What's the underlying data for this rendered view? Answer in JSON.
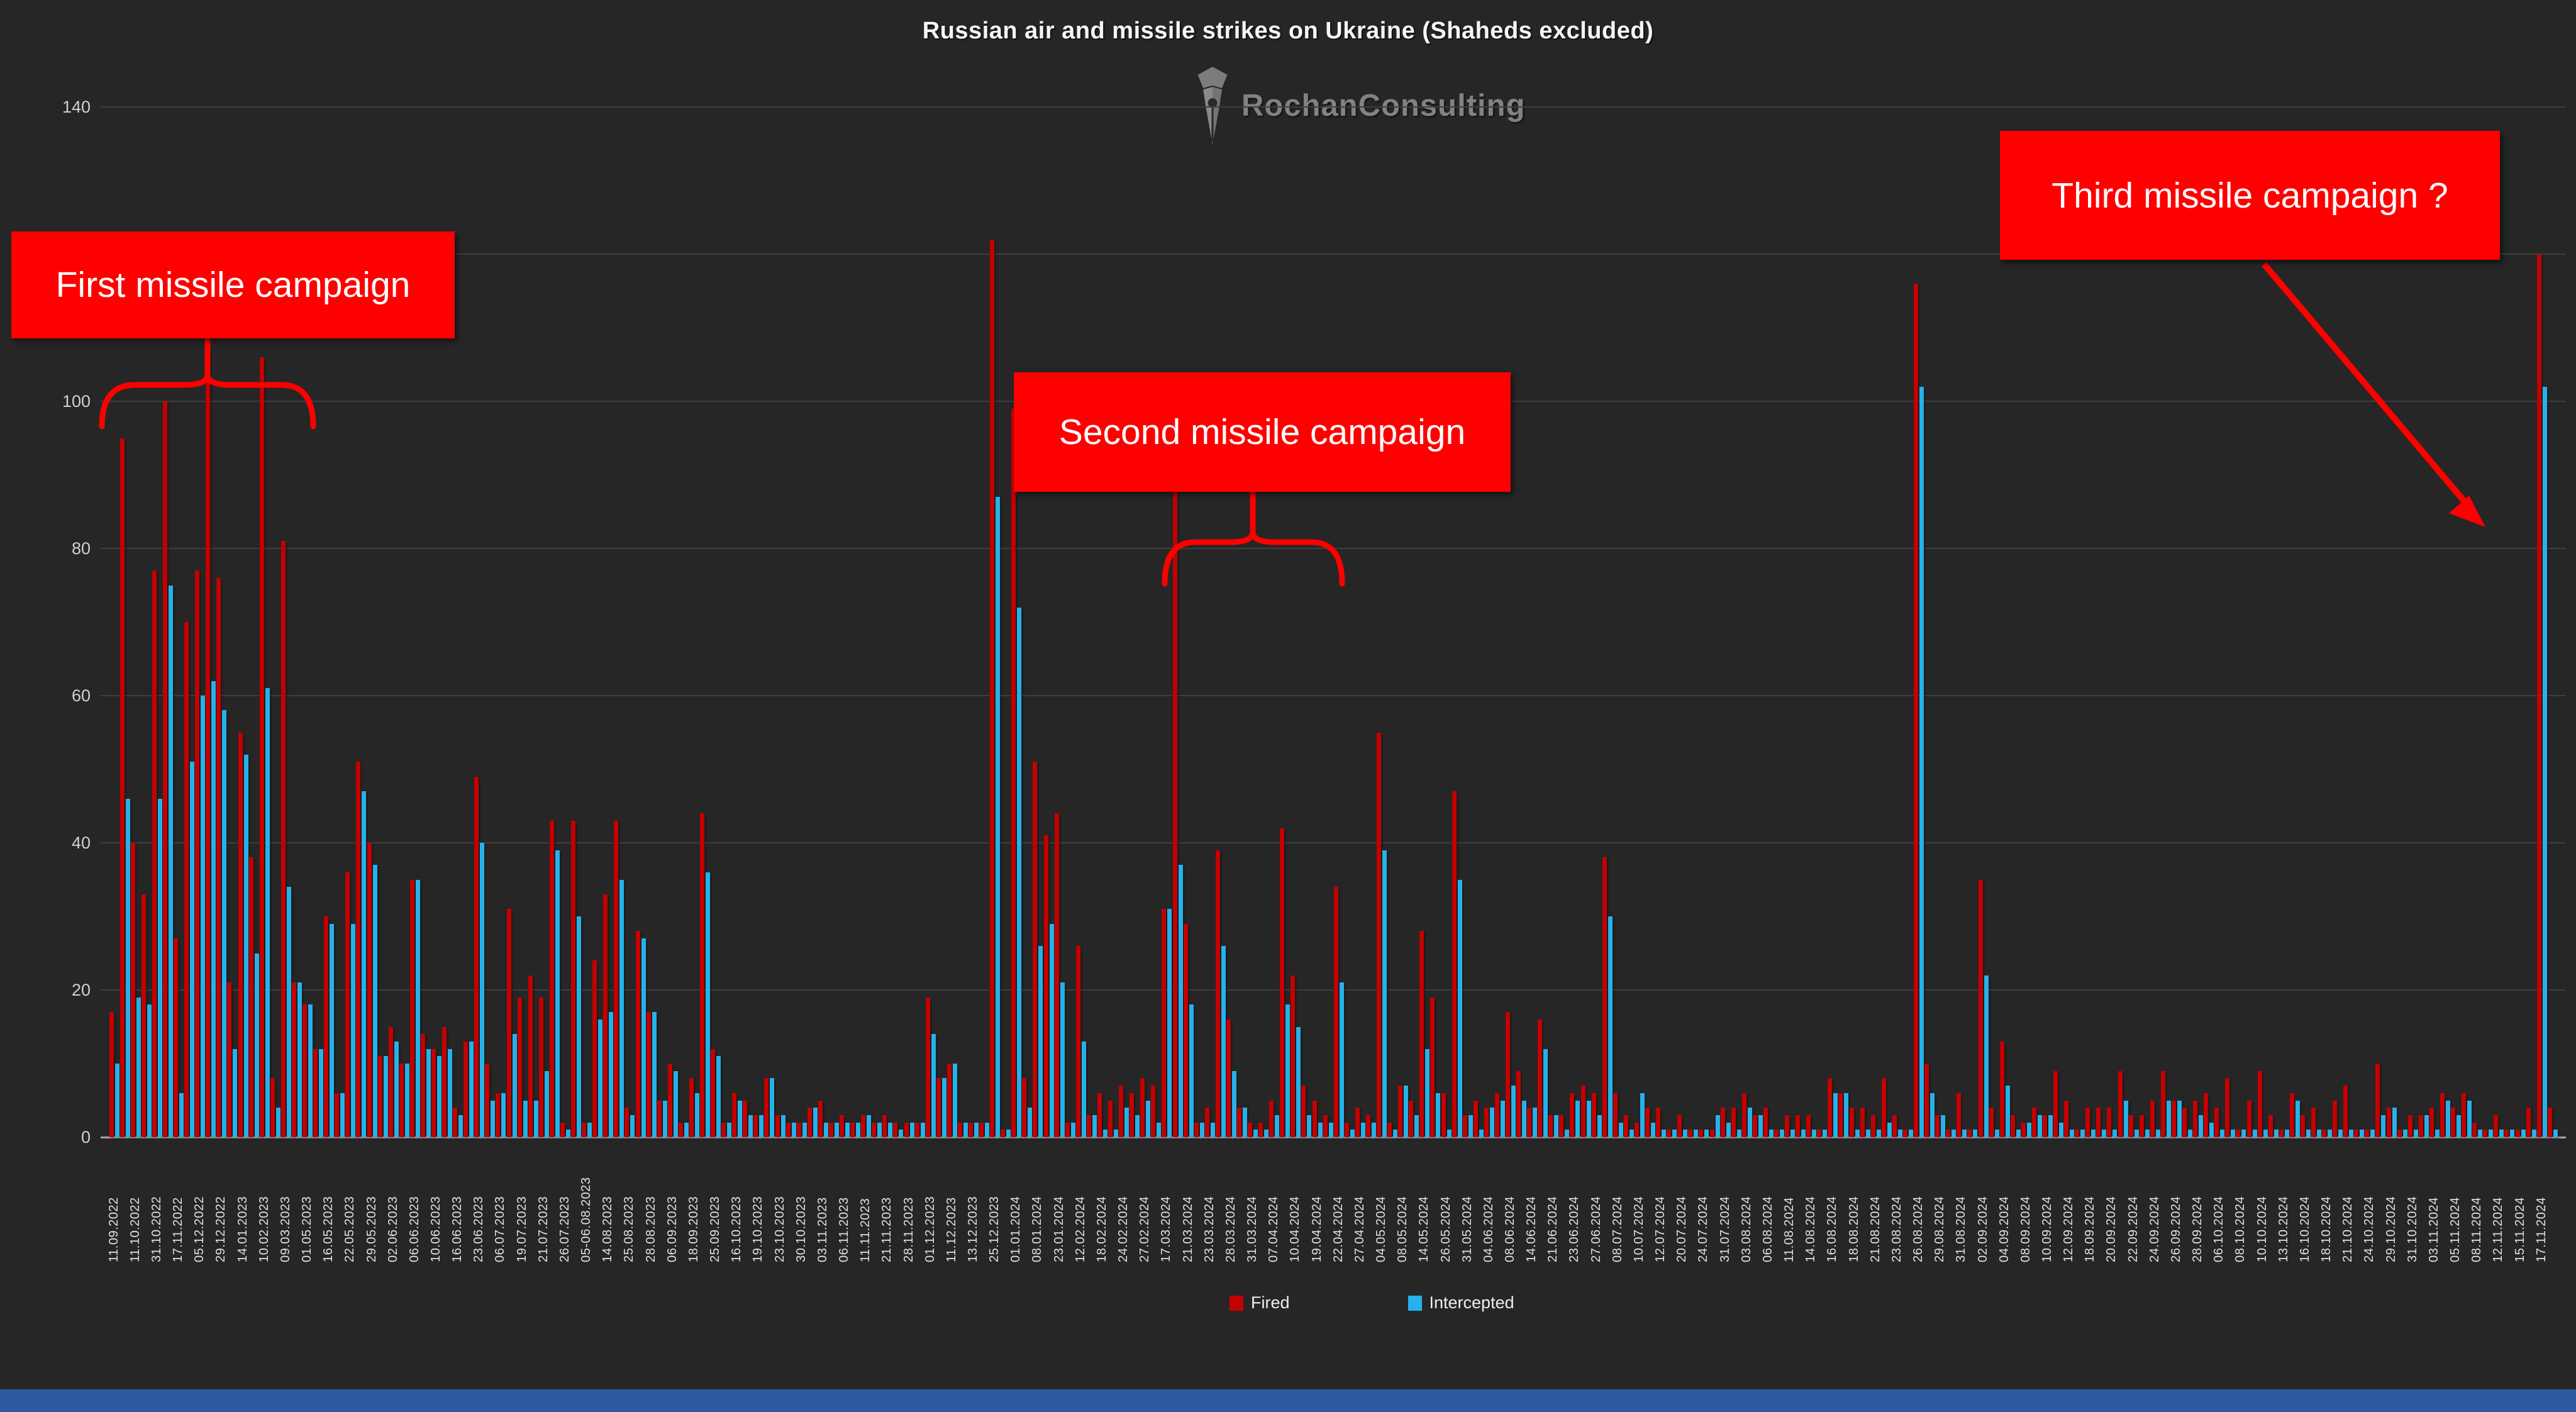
{
  "title": "Russian air and missile strikes on Ukraine (Shaheds excluded)",
  "watermark": {
    "brand": "RochanConsulting"
  },
  "annotations": {
    "first": "First missile campaign",
    "second": "Second missile campaign",
    "third": "Third missile campaign ?"
  },
  "colors": {
    "background": "#262626",
    "fired": "#c40000",
    "intercepted": "#25b2ea",
    "callout": "#fe0000",
    "grid": "#3e3e3e",
    "footer": "#2e5aa0",
    "text": "#e0e0e0"
  },
  "chart_data": {
    "type": "bar",
    "title": "Russian air and missile strikes on Ukraine (Shaheds excluded)",
    "xlabel": "",
    "ylabel": "",
    "ylim": [
      0,
      140
    ],
    "ytick_step": 20,
    "grid": "horizontal",
    "legend_position": "bottom",
    "series": [
      {
        "name": "Fired",
        "color": "#c40000"
      },
      {
        "name": "Intercepted",
        "color": "#25b2ea"
      }
    ],
    "note": "points = [date-label (empty string when unlabeled on axis), fired, intercepted]",
    "points": [
      [
        "11.09.2022",
        17,
        10
      ],
      [
        "",
        95,
        46
      ],
      [
        "11.10.2022",
        40,
        19
      ],
      [
        "",
        33,
        18
      ],
      [
        "31.10.2022",
        77,
        46
      ],
      [
        "",
        100,
        75
      ],
      [
        "17.11.2022",
        27,
        6
      ],
      [
        "",
        70,
        51
      ],
      [
        "05.12.2022",
        77,
        60
      ],
      [
        "",
        107,
        62
      ],
      [
        "29.12.2022",
        76,
        58
      ],
      [
        "",
        21,
        12
      ],
      [
        "14.01.2023",
        55,
        52
      ],
      [
        "",
        38,
        25
      ],
      [
        "10.02.2023",
        106,
        61
      ],
      [
        "",
        8,
        4
      ],
      [
        "09.03.2023",
        81,
        34
      ],
      [
        "",
        21,
        21
      ],
      [
        "01.05.2023",
        18,
        18
      ],
      [
        "",
        12,
        12
      ],
      [
        "16.05.2023",
        30,
        29
      ],
      [
        "",
        6,
        6
      ],
      [
        "22.05.2023",
        36,
        29
      ],
      [
        "",
        51,
        47
      ],
      [
        "29.05.2023",
        40,
        37
      ],
      [
        "",
        11,
        11
      ],
      [
        "02.06.2023",
        15,
        13
      ],
      [
        "",
        10,
        10
      ],
      [
        "06.06.2023",
        35,
        35
      ],
      [
        "",
        14,
        12
      ],
      [
        "10.06.2023",
        12,
        11
      ],
      [
        "",
        15,
        12
      ],
      [
        "16.06.2023",
        4,
        3
      ],
      [
        "",
        13,
        13
      ],
      [
        "23.06.2023",
        49,
        40
      ],
      [
        "",
        10,
        5
      ],
      [
        "06.07.2023",
        6,
        6
      ],
      [
        "",
        31,
        14
      ],
      [
        "19.07.2023",
        19,
        5
      ],
      [
        "",
        22,
        5
      ],
      [
        "21.07.2023",
        19,
        9
      ],
      [
        "",
        43,
        39
      ],
      [
        "26.07.2023",
        2,
        1
      ],
      [
        "",
        43,
        30
      ],
      [
        "05-06.08.2023",
        2,
        2
      ],
      [
        "",
        24,
        16
      ],
      [
        "14.08.2023",
        33,
        17
      ],
      [
        "",
        43,
        35
      ],
      [
        "25.08.2023",
        4,
        3
      ],
      [
        "",
        28,
        27
      ],
      [
        "28.08.2023",
        17,
        17
      ],
      [
        "",
        5,
        5
      ],
      [
        "06.09.2023",
        10,
        9
      ],
      [
        "",
        2,
        2
      ],
      [
        "18.09.2023",
        8,
        6
      ],
      [
        "",
        44,
        36
      ],
      [
        "25.09.2023",
        12,
        11
      ],
      [
        "",
        2,
        2
      ],
      [
        "16.10.2023",
        6,
        5
      ],
      [
        "",
        5,
        3
      ],
      [
        "19.10.2023",
        3,
        3
      ],
      [
        "",
        8,
        8
      ],
      [
        "23.10.2023",
        3,
        3
      ],
      [
        "",
        2,
        2
      ],
      [
        "30.10.2023",
        2,
        2
      ],
      [
        "",
        4,
        4
      ],
      [
        "03.11.2023",
        5,
        2
      ],
      [
        "",
        2,
        2
      ],
      [
        "06.11.2023",
        3,
        2
      ],
      [
        "",
        2,
        2
      ],
      [
        "11.11.2023",
        3,
        3
      ],
      [
        "",
        2,
        2
      ],
      [
        "21.11.2023",
        3,
        2
      ],
      [
        "",
        2,
        1
      ],
      [
        "28.11.2023",
        2,
        2
      ],
      [
        "",
        2,
        2
      ],
      [
        "01.12.2023",
        19,
        14
      ],
      [
        "",
        8,
        8
      ],
      [
        "11.12.2023",
        10,
        10
      ],
      [
        "",
        2,
        2
      ],
      [
        "13.12.2023",
        2,
        2
      ],
      [
        "",
        2,
        2
      ],
      [
        "25.12.2023",
        122,
        87
      ],
      [
        "",
        1,
        1
      ],
      [
        "01.01.2024",
        99,
        72
      ],
      [
        "",
        8,
        4
      ],
      [
        "08.01.2024",
        51,
        26
      ],
      [
        "",
        41,
        29
      ],
      [
        "23.01.2024",
        44,
        21
      ],
      [
        "",
        2,
        2
      ],
      [
        "12.02.2024",
        26,
        13
      ],
      [
        "",
        3,
        3
      ],
      [
        "18.02.2024",
        6,
        1
      ],
      [
        "",
        5,
        1
      ],
      [
        "24.02.2024",
        7,
        4
      ],
      [
        "",
        6,
        3
      ],
      [
        "27.02.2024",
        8,
        5
      ],
      [
        "",
        7,
        2
      ],
      [
        "17.03.2024",
        31,
        31
      ],
      [
        "",
        88,
        37
      ],
      [
        "21.03.2024",
        29,
        18
      ],
      [
        "",
        2,
        2
      ],
      [
        "23.03.2024",
        4,
        2
      ],
      [
        "",
        39,
        26
      ],
      [
        "28.03.2024",
        16,
        9
      ],
      [
        "",
        4,
        4
      ],
      [
        "31.03.2024",
        2,
        1
      ],
      [
        "",
        2,
        1
      ],
      [
        "07.04.2024",
        5,
        3
      ],
      [
        "",
        42,
        18
      ],
      [
        "10.04.2024",
        22,
        15
      ],
      [
        "",
        7,
        3
      ],
      [
        "19.04.2024",
        5,
        2
      ],
      [
        "",
        3,
        2
      ],
      [
        "22.04.2024",
        34,
        21
      ],
      [
        "",
        2,
        1
      ],
      [
        "27.04.2024",
        4,
        2
      ],
      [
        "",
        3,
        2
      ],
      [
        "04.05.2024",
        55,
        39
      ],
      [
        "",
        2,
        1
      ],
      [
        "08.05.2024",
        7,
        7
      ],
      [
        "",
        5,
        3
      ],
      [
        "14.05.2024",
        28,
        12
      ],
      [
        "",
        19,
        6
      ],
      [
        "26.05.2024",
        6,
        1
      ],
      [
        "",
        47,
        35
      ],
      [
        "31.05.2024",
        3,
        3
      ],
      [
        "",
        5,
        1
      ],
      [
        "04.06.2024",
        4,
        4
      ],
      [
        "",
        6,
        5
      ],
      [
        "08.06.2024",
        17,
        7
      ],
      [
        "",
        9,
        5
      ],
      [
        "14.06.2024",
        4,
        4
      ],
      [
        "",
        16,
        12
      ],
      [
        "21.06.2024",
        3,
        3
      ],
      [
        "",
        3,
        1
      ],
      [
        "23.06.2024",
        6,
        5
      ],
      [
        "",
        7,
        5
      ],
      [
        "27.06.2024",
        6,
        3
      ],
      [
        "",
        38,
        30
      ],
      [
        "08.07.2024",
        6,
        2
      ],
      [
        "",
        3,
        1
      ],
      [
        "10.07.2024",
        2,
        6
      ],
      [
        "",
        4,
        2
      ],
      [
        "12.07.2024",
        4,
        1
      ],
      [
        "",
        1,
        1
      ],
      [
        "20.07.2024",
        3,
        1
      ],
      [
        "",
        1,
        1
      ],
      [
        "24.07.2024",
        1,
        1
      ],
      [
        "",
        1,
        3
      ],
      [
        "31.07.2024",
        4,
        2
      ],
      [
        "",
        4,
        1
      ],
      [
        "03.08.2024",
        6,
        4
      ],
      [
        "",
        3,
        3
      ],
      [
        "06.08.2024",
        4,
        1
      ],
      [
        "",
        1,
        1
      ],
      [
        "11.08.2024",
        3,
        1
      ],
      [
        "",
        3,
        1
      ],
      [
        "14.08.2024",
        3,
        1
      ],
      [
        "",
        1,
        1
      ],
      [
        "16.08.2024",
        8,
        6
      ],
      [
        "",
        6,
        6
      ],
      [
        "18.08.2024",
        4,
        1
      ],
      [
        "",
        4,
        1
      ],
      [
        "21.08.2024",
        3,
        1
      ],
      [
        "",
        8,
        2
      ],
      [
        "23.08.2024",
        3,
        1
      ],
      [
        "",
        1,
        1
      ],
      [
        "26.08.2024",
        116,
        102
      ],
      [
        "",
        10,
        6
      ],
      [
        "29.08.2024",
        3,
        3
      ],
      [
        "",
        1,
        1
      ],
      [
        "31.08.2024",
        6,
        1
      ],
      [
        "",
        1,
        1
      ],
      [
        "02.09.2024",
        35,
        22
      ],
      [
        "",
        4,
        1
      ],
      [
        "04.09.2024",
        13,
        7
      ],
      [
        "",
        3,
        1
      ],
      [
        "08.09.2024",
        2,
        2
      ],
      [
        "",
        4,
        3
      ],
      [
        "10.09.2024",
        3,
        3
      ],
      [
        "",
        9,
        2
      ],
      [
        "12.09.2024",
        5,
        1
      ],
      [
        "",
        1,
        1
      ],
      [
        "18.09.2024",
        4,
        1
      ],
      [
        "",
        4,
        1
      ],
      [
        "20.09.2024",
        4,
        1
      ],
      [
        "",
        9,
        5
      ],
      [
        "22.09.2024",
        3,
        1
      ],
      [
        "",
        3,
        1
      ],
      [
        "24.09.2024",
        5,
        1
      ],
      [
        "",
        9,
        5
      ],
      [
        "26.09.2024",
        5,
        5
      ],
      [
        "",
        4,
        1
      ],
      [
        "28.09.2024",
        5,
        3
      ],
      [
        "",
        6,
        2
      ],
      [
        "06.10.2024",
        4,
        1
      ],
      [
        "",
        8,
        1
      ],
      [
        "08.10.2024",
        1,
        1
      ],
      [
        "",
        5,
        1
      ],
      [
        "10.10.2024",
        9,
        1
      ],
      [
        "",
        3,
        1
      ],
      [
        "13.10.2024",
        1,
        1
      ],
      [
        "",
        6,
        5
      ],
      [
        "16.10.2024",
        3,
        1
      ],
      [
        "",
        4,
        1
      ],
      [
        "18.10.2024",
        1,
        1
      ],
      [
        "",
        5,
        1
      ],
      [
        "21.10.2024",
        7,
        1
      ],
      [
        "",
        1,
        1
      ],
      [
        "24.10.2024",
        1,
        1
      ],
      [
        "",
        10,
        3
      ],
      [
        "29.10.2024",
        4,
        4
      ],
      [
        "",
        1,
        1
      ],
      [
        "31.10.2024",
        3,
        1
      ],
      [
        "",
        3,
        3
      ],
      [
        "03.11.2024",
        4,
        1
      ],
      [
        "",
        6,
        5
      ],
      [
        "05.11.2024",
        4,
        3
      ],
      [
        "",
        6,
        5
      ],
      [
        "08.11.2024",
        2,
        1
      ],
      [
        "",
        1,
        1
      ],
      [
        "12.11.2024",
        3,
        1
      ],
      [
        "",
        1,
        1
      ],
      [
        "15.11.2024",
        1,
        1
      ],
      [
        "",
        4,
        1
      ],
      [
        "17.11.2024",
        120,
        102
      ],
      [
        "",
        4,
        1
      ]
    ]
  }
}
